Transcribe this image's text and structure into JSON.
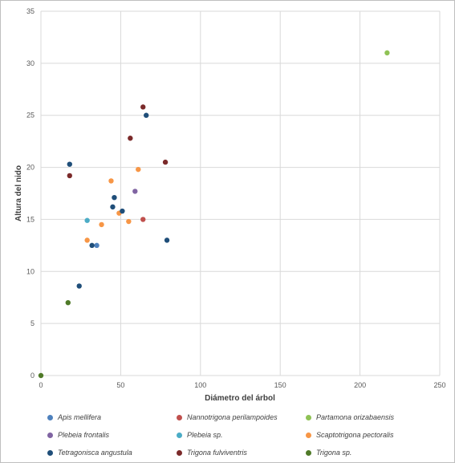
{
  "chart_data": {
    "type": "scatter",
    "title": "",
    "xlabel": "Diámetro del árbol",
    "ylabel": "Altura del nido",
    "xlim": [
      0,
      250
    ],
    "ylim": [
      0,
      35
    ],
    "xticks": [
      0,
      50,
      100,
      150,
      200,
      250
    ],
    "yticks": [
      0,
      5,
      10,
      15,
      20,
      25,
      30,
      35
    ],
    "grid": true,
    "legend_position": "bottom",
    "series": [
      {
        "name": "Apis mellifera",
        "color": "#4e81bd",
        "points": [
          [
            35,
            12.5
          ]
        ]
      },
      {
        "name": "Nannotrigona perilampoides",
        "color": "#c0504d",
        "points": [
          [
            64,
            15
          ]
        ]
      },
      {
        "name": "Partamona orizabaensis",
        "color": "#8fc255",
        "points": [
          [
            217,
            31
          ]
        ]
      },
      {
        "name": "Plebeia frontalis",
        "color": "#8064a2",
        "points": [
          [
            59,
            17.7
          ]
        ]
      },
      {
        "name": "Plebeia sp.",
        "color": "#4bacc6",
        "points": [
          [
            29,
            14.9
          ]
        ]
      },
      {
        "name": "Scaptotrigona pectoralis",
        "color": "#f79646",
        "points": [
          [
            44,
            18.7
          ],
          [
            61,
            19.8
          ],
          [
            38,
            14.5
          ],
          [
            29,
            13
          ],
          [
            49,
            15.6
          ],
          [
            55,
            14.8
          ]
        ]
      },
      {
        "name": "Tetragonisca angustula",
        "color": "#1f4e79",
        "points": [
          [
            18,
            20.3
          ],
          [
            66,
            25
          ],
          [
            46,
            17.1
          ],
          [
            45,
            16.2
          ],
          [
            51,
            15.8
          ],
          [
            32,
            12.5
          ],
          [
            79,
            13
          ],
          [
            24,
            8.6
          ]
        ]
      },
      {
        "name": "Trigona fulviventris",
        "color": "#7b2a2a",
        "points": [
          [
            64,
            25.8
          ],
          [
            56,
            22.8
          ],
          [
            18,
            19.2
          ],
          [
            78,
            20.5
          ]
        ]
      },
      {
        "name": "Trigona sp.",
        "color": "#4f7a28",
        "points": [
          [
            17,
            7
          ],
          [
            0,
            0
          ]
        ]
      }
    ]
  }
}
